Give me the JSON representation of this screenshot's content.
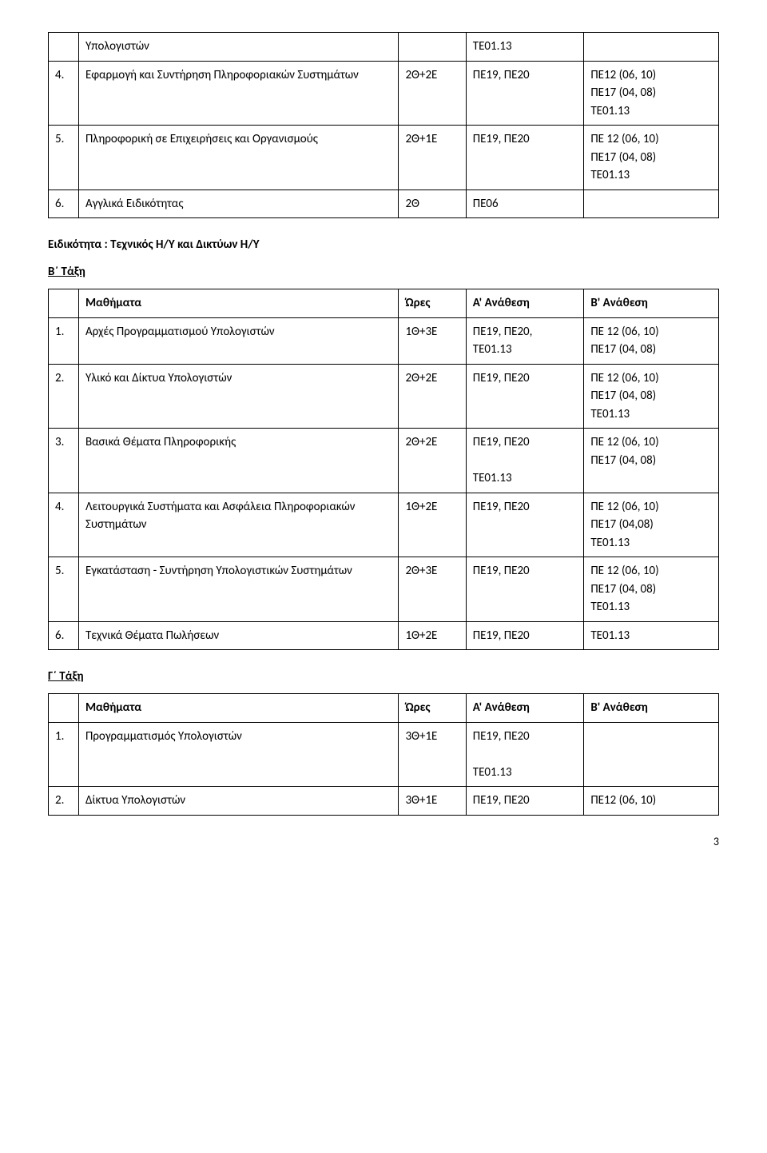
{
  "table1": {
    "r0": {
      "subj": "Υπολογιστών",
      "hrs": "",
      "a": "ΤΕ01.13",
      "b": ""
    },
    "r1": {
      "num": "4.",
      "subj": "Εφαρμογή και Συντήρηση Πληροφοριακών Συστημάτων",
      "hrs": "2Θ+2Ε",
      "a": "ΠΕ19, ΠΕ20",
      "b": "ΠΕ12 (06, 10)\nΠΕ17 (04, 08)\nΤΕ01.13"
    },
    "r2": {
      "num": "5.",
      "subj": "Πληροφορική σε Επιχειρήσεις και Οργανισμούς",
      "hrs": "2Θ+1Ε",
      "a": "ΠΕ19, ΠΕ20",
      "b": "ΠΕ 12 (06, 10)\nΠΕ17 (04, 08)\nΤΕ01.13"
    },
    "r3": {
      "num": "6.",
      "subj": "Αγγλικά Ειδικότητας",
      "hrs": "2Θ",
      "a": "ΠΕ06",
      "b": ""
    }
  },
  "section1_title": "Ειδικότητα : Τεχνικός Η/Υ και Δικτύων Η/Υ",
  "section1_class": "Β΄ Τάξη",
  "table2_header": {
    "c0": "",
    "c1": "Μαθήματα",
    "c2": "Ώρες",
    "c3": "Α' Ανάθεση",
    "c4": "Β' Ανάθεση"
  },
  "table2": {
    "r1": {
      "num": "1.",
      "subj": "Αρχές Προγραμματισμού Υπολογιστών",
      "hrs": "1Θ+3Ε",
      "a": "ΠΕ19, ΠΕ20,\nΤΕ01.13",
      "b": "ΠΕ 12 (06, 10)\nΠΕ17 (04, 08)"
    },
    "r2": {
      "num": "2.",
      "subj": "Υλικό και Δίκτυα Υπολογιστών",
      "hrs": "2Θ+2Ε",
      "a": "ΠΕ19, ΠΕ20",
      "b": "ΠΕ 12 (06, 10)\nΠΕ17 (04, 08)\nΤΕ01.13"
    },
    "r3": {
      "num": "3.",
      "subj": "Βασικά Θέματα Πληροφορικής",
      "hrs": "2Θ+2Ε",
      "a": "ΠΕ19, ΠΕ20\n\nΤΕ01.13",
      "b": "ΠΕ 12 (06, 10)\nΠΕ17 (04, 08)"
    },
    "r4": {
      "num": "4.",
      "subj": "Λειτουργικά Συστήματα και Ασφάλεια Πληροφοριακών Συστημάτων",
      "hrs": "1Θ+2Ε",
      "a": "ΠΕ19, ΠΕ20",
      "b": "ΠΕ 12 (06, 10)\nΠΕ17 (04,08)\nΤΕ01.13"
    },
    "r5": {
      "num": "5.",
      "subj": "Εγκατάσταση - Συντήρηση Υπολογιστικών Συστημάτων",
      "hrs": "2Θ+3Ε",
      "a": "ΠΕ19, ΠΕ20",
      "b": "ΠΕ 12 (06, 10)\nΠΕ17 (04, 08)\nΤΕ01.13"
    },
    "r6": {
      "num": "6.",
      "subj": "Τεχνικά Θέματα Πωλήσεων",
      "hrs": "1Θ+2Ε",
      "a": "ΠΕ19, ΠΕ20",
      "b": "ΤΕ01.13"
    }
  },
  "section2_class": "Γ΄ Τάξη",
  "table3_header": {
    "c0": "",
    "c1": "Μαθήματα",
    "c2": "Ώρες",
    "c3": "Α' Ανάθεση",
    "c4": "Β' Ανάθεση"
  },
  "table3": {
    "r1": {
      "num": "1.",
      "subj": "Προγραμματισμός Υπολογιστών",
      "hrs": "3Θ+1Ε",
      "a": "ΠΕ19, ΠΕ20\n\nΤΕ01.13",
      "b": ""
    },
    "r2": {
      "num": "2.",
      "subj": "Δίκτυα Υπολογιστών",
      "hrs": "3Θ+1Ε",
      "a": "ΠΕ19, ΠΕ20",
      "b": "ΠΕ12 (06, 10)"
    }
  },
  "page_number": "3"
}
